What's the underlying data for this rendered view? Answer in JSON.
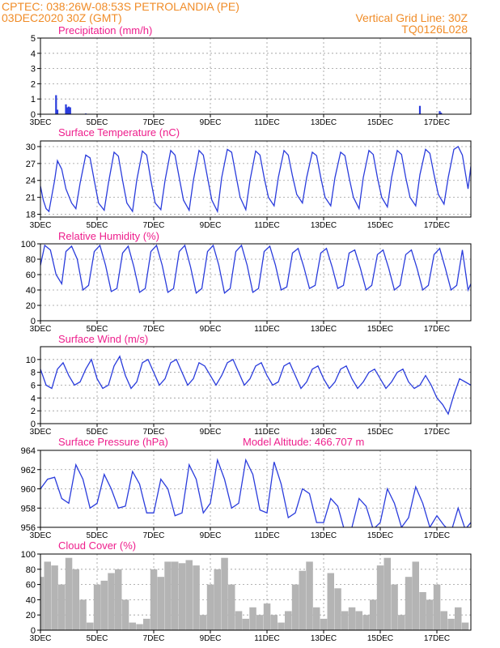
{
  "header": {
    "line1": "CPTEC:    038:26W-08:53S   PETROLANDIA (PE)",
    "line2": "03DEC2020 30Z (GMT)",
    "grid_note": "Vertical Grid Line: 30Z",
    "model_id": "TQ0126L028"
  },
  "colors": {
    "header": "#f08c28",
    "title": "#ee1e8c",
    "line": "#2a3cdc",
    "cloud": "#b4b4b4"
  },
  "x_axis": {
    "start_day": 3,
    "end_day": 18.2,
    "ticks": [
      {
        "day": 3,
        "label": "3DEC"
      },
      {
        "day": 5,
        "label": "5DEC"
      },
      {
        "day": 7,
        "label": "7DEC"
      },
      {
        "day": 9,
        "label": "9DEC"
      },
      {
        "day": 11,
        "label": "11DEC"
      },
      {
        "day": 13,
        "label": "13DEC"
      },
      {
        "day": 15,
        "label": "15DEC"
      },
      {
        "day": 17,
        "label": "17DEC"
      }
    ]
  },
  "chart_data": [
    {
      "id": "precip",
      "type": "bar",
      "title": "Precipitation  (mm/h)",
      "ylim": [
        0,
        5
      ],
      "yticks": [
        0,
        1,
        2,
        3,
        4,
        5
      ],
      "grid": true,
      "x": [
        3.55,
        3.6,
        3.9,
        3.95,
        4.0,
        4.05,
        4.6,
        16.4,
        17.1,
        17.15
      ],
      "values": [
        1.25,
        0.3,
        0.65,
        0.45,
        0.5,
        0.45,
        0.05,
        0.55,
        0.2,
        0.1
      ]
    },
    {
      "id": "temp",
      "type": "line",
      "title": "Surface Temperature  (nC)",
      "ylim": [
        17.5,
        31
      ],
      "yticks": [
        18,
        21,
        24,
        27,
        30
      ],
      "grid": true,
      "x": [
        3.0,
        3.1,
        3.2,
        3.3,
        3.5,
        3.6,
        3.75,
        3.9,
        4.1,
        4.25,
        4.4,
        4.6,
        4.75,
        4.9,
        5.05,
        5.25,
        5.4,
        5.6,
        5.75,
        5.9,
        6.05,
        6.25,
        6.4,
        6.6,
        6.75,
        6.9,
        7.05,
        7.25,
        7.4,
        7.6,
        7.75,
        7.9,
        8.05,
        8.25,
        8.4,
        8.6,
        8.75,
        8.9,
        9.05,
        9.25,
        9.4,
        9.6,
        9.75,
        9.9,
        10.05,
        10.25,
        10.4,
        10.6,
        10.75,
        10.9,
        11.05,
        11.25,
        11.4,
        11.6,
        11.75,
        11.9,
        12.05,
        12.25,
        12.4,
        12.6,
        12.75,
        12.9,
        13.05,
        13.25,
        13.4,
        13.6,
        13.75,
        13.9,
        14.05,
        14.25,
        14.4,
        14.6,
        14.75,
        14.9,
        15.05,
        15.25,
        15.4,
        15.6,
        15.75,
        15.9,
        16.05,
        16.25,
        16.4,
        16.6,
        16.75,
        16.9,
        17.05,
        17.25,
        17.4,
        17.6,
        17.75,
        17.9,
        18.1,
        18.2
      ],
      "values": [
        23.0,
        20.5,
        19.0,
        18.5,
        24.0,
        27.5,
        26.0,
        22.5,
        20.0,
        19.0,
        23.5,
        28.5,
        28.0,
        24.0,
        20.0,
        18.7,
        23.5,
        29.0,
        28.3,
        24.0,
        20.0,
        18.5,
        24.0,
        29.2,
        28.5,
        24.0,
        20.0,
        18.8,
        24.0,
        29.3,
        28.5,
        24.5,
        20.5,
        18.7,
        24.0,
        29.3,
        28.5,
        24.5,
        20.5,
        18.5,
        24.5,
        29.5,
        29.0,
        25.0,
        21.0,
        18.8,
        24.0,
        29.2,
        28.5,
        24.5,
        21.0,
        19.5,
        24.5,
        29.3,
        28.5,
        24.8,
        21.5,
        20.0,
        24.5,
        29.0,
        28.4,
        24.5,
        21.0,
        19.5,
        24.5,
        29.0,
        28.4,
        24.5,
        21.0,
        19.0,
        24.5,
        29.3,
        28.6,
        24.5,
        21.0,
        19.3,
        24.5,
        29.3,
        28.6,
        24.5,
        21.0,
        19.5,
        25.0,
        29.5,
        28.8,
        25.0,
        21.5,
        19.8,
        24.5,
        29.5,
        30.0,
        28.5,
        22.5,
        26.5
      ]
    },
    {
      "id": "rh",
      "type": "line",
      "title": "Relative Humidity  (%)",
      "ylim": [
        0,
        100
      ],
      "yticks": [
        0,
        20,
        40,
        60,
        80,
        100
      ],
      "grid": true,
      "x": [
        3.0,
        3.15,
        3.35,
        3.55,
        3.75,
        3.9,
        4.1,
        4.3,
        4.5,
        4.7,
        4.9,
        5.1,
        5.3,
        5.5,
        5.7,
        5.9,
        6.1,
        6.3,
        6.5,
        6.7,
        6.9,
        7.1,
        7.3,
        7.5,
        7.7,
        7.9,
        8.1,
        8.3,
        8.5,
        8.7,
        8.9,
        9.1,
        9.3,
        9.5,
        9.7,
        9.9,
        10.1,
        10.3,
        10.5,
        10.7,
        10.9,
        11.1,
        11.3,
        11.5,
        11.7,
        11.9,
        12.1,
        12.3,
        12.5,
        12.7,
        12.9,
        13.1,
        13.3,
        13.5,
        13.7,
        13.9,
        14.1,
        14.3,
        14.5,
        14.7,
        14.9,
        15.1,
        15.3,
        15.5,
        15.7,
        15.9,
        16.1,
        16.3,
        16.5,
        16.7,
        16.9,
        17.1,
        17.3,
        17.5,
        17.7,
        17.9,
        18.1,
        18.2
      ],
      "values": [
        72.0,
        98.0,
        92.0,
        60.0,
        48.0,
        90.0,
        97.0,
        80.0,
        40.0,
        46.0,
        90.0,
        98.0,
        72.0,
        38.0,
        42.0,
        88.0,
        97.0,
        70.0,
        37.0,
        42.0,
        90.0,
        98.0,
        72.0,
        37.0,
        42.0,
        90.0,
        98.0,
        70.0,
        36.0,
        42.0,
        90.0,
        98.0,
        72.0,
        36.0,
        42.0,
        90.0,
        98.0,
        72.0,
        37.0,
        42.0,
        90.0,
        97.0,
        72.0,
        40.0,
        44.0,
        88.0,
        94.0,
        70.0,
        42.0,
        46.0,
        88.0,
        94.0,
        70.0,
        42.0,
        46.0,
        88.0,
        92.0,
        68.0,
        40.0,
        46.0,
        86.0,
        92.0,
        68.0,
        40.0,
        46.0,
        86.0,
        92.0,
        68.0,
        40.0,
        46.0,
        86.0,
        94.0,
        68.0,
        40.0,
        46.0,
        92.0,
        40.0,
        48.0
      ]
    },
    {
      "id": "wind",
      "type": "line",
      "title": "Surface Wind  (m/s)",
      "ylim": [
        0,
        12
      ],
      "yticks": [
        0,
        2,
        4,
        6,
        8,
        10
      ],
      "grid": true,
      "x": [
        3.0,
        3.2,
        3.4,
        3.6,
        3.8,
        4.0,
        4.2,
        4.4,
        4.6,
        4.8,
        5.0,
        5.2,
        5.4,
        5.6,
        5.8,
        6.0,
        6.2,
        6.4,
        6.6,
        6.8,
        7.0,
        7.2,
        7.4,
        7.6,
        7.8,
        8.0,
        8.2,
        8.4,
        8.6,
        8.8,
        9.0,
        9.2,
        9.4,
        9.6,
        9.8,
        10.0,
        10.2,
        10.4,
        10.6,
        10.8,
        11.0,
        11.2,
        11.4,
        11.6,
        11.8,
        12.0,
        12.2,
        12.4,
        12.6,
        12.8,
        13.0,
        13.2,
        13.4,
        13.6,
        13.8,
        14.0,
        14.2,
        14.4,
        14.6,
        14.8,
        15.0,
        15.2,
        15.4,
        15.6,
        15.8,
        16.0,
        16.2,
        16.4,
        16.6,
        16.8,
        17.0,
        17.2,
        17.4,
        17.6,
        17.8,
        18.0,
        18.2
      ],
      "values": [
        8.5,
        6.0,
        5.5,
        8.5,
        9.5,
        7.5,
        6.0,
        6.5,
        8.5,
        10.0,
        7.0,
        5.5,
        6.0,
        9.0,
        10.5,
        7.5,
        5.5,
        6.5,
        9.5,
        10.0,
        8.0,
        6.0,
        7.0,
        9.5,
        10.0,
        8.0,
        6.0,
        7.0,
        9.5,
        9.0,
        7.5,
        6.0,
        7.5,
        9.5,
        10.0,
        8.0,
        6.0,
        7.0,
        9.0,
        9.5,
        7.5,
        6.0,
        6.5,
        9.0,
        9.5,
        7.5,
        5.5,
        6.5,
        8.5,
        9.0,
        7.0,
        5.5,
        6.5,
        8.5,
        9.0,
        7.0,
        5.5,
        6.5,
        8.0,
        8.5,
        7.0,
        5.5,
        6.5,
        8.0,
        8.5,
        6.5,
        5.5,
        6.0,
        7.5,
        6.0,
        4.0,
        3.0,
        1.5,
        4.5,
        7.0,
        6.5,
        6.0
      ]
    },
    {
      "id": "pressure",
      "type": "line",
      "title": "Surface Pressure  (hPa)",
      "annotation": "Model Altitude: 466.707  m",
      "ylim": [
        956,
        964
      ],
      "yticks": [
        956,
        958,
        960,
        962,
        964
      ],
      "grid": true,
      "x": [
        3.0,
        3.25,
        3.5,
        3.75,
        4.0,
        4.25,
        4.5,
        4.75,
        5.0,
        5.25,
        5.5,
        5.75,
        6.0,
        6.25,
        6.5,
        6.75,
        7.0,
        7.25,
        7.5,
        7.75,
        8.0,
        8.25,
        8.5,
        8.75,
        9.0,
        9.25,
        9.5,
        9.75,
        10.0,
        10.25,
        10.5,
        10.75,
        11.0,
        11.25,
        11.5,
        11.75,
        12.0,
        12.25,
        12.5,
        12.75,
        13.0,
        13.25,
        13.5,
        13.75,
        14.0,
        14.25,
        14.5,
        14.75,
        15.0,
        15.25,
        15.5,
        15.75,
        16.0,
        16.25,
        16.5,
        16.75,
        17.0,
        17.25,
        17.5,
        17.75,
        18.0,
        18.2
      ],
      "values": [
        960.0,
        961.0,
        961.2,
        959.0,
        958.5,
        962.5,
        961.0,
        958.0,
        958.5,
        961.5,
        960.0,
        958.0,
        958.2,
        961.8,
        960.5,
        957.5,
        957.5,
        961.0,
        960.0,
        957.2,
        957.5,
        962.5,
        961.0,
        957.5,
        958.5,
        963.0,
        961.0,
        958.0,
        958.5,
        963.0,
        961.5,
        957.8,
        957.5,
        962.8,
        960.5,
        957.0,
        957.5,
        960.0,
        959.5,
        956.5,
        956.5,
        959.0,
        958.2,
        955.5,
        956.0,
        959.0,
        958.2,
        955.8,
        956.5,
        960.0,
        958.5,
        956.0,
        957.0,
        960.2,
        958.5,
        956.0,
        957.2,
        956.2,
        955.5,
        958.0,
        955.8,
        956.5
      ]
    },
    {
      "id": "cloud",
      "type": "bar",
      "title": "Cloud Cover  (%)",
      "ylim": [
        0,
        100
      ],
      "yticks": [
        0,
        20,
        40,
        60,
        80,
        100
      ],
      "grid": true,
      "x": [
        3.0,
        3.25,
        3.5,
        3.75,
        4.0,
        4.25,
        4.5,
        4.75,
        5.0,
        5.25,
        5.5,
        5.75,
        6.0,
        6.25,
        6.5,
        6.75,
        7.0,
        7.25,
        7.5,
        7.75,
        8.0,
        8.25,
        8.5,
        8.75,
        9.0,
        9.25,
        9.5,
        9.75,
        10.0,
        10.25,
        10.5,
        10.75,
        11.0,
        11.25,
        11.5,
        11.75,
        12.0,
        12.25,
        12.5,
        12.75,
        13.0,
        13.25,
        13.5,
        13.75,
        14.0,
        14.25,
        14.5,
        14.75,
        15.0,
        15.25,
        15.5,
        15.75,
        16.0,
        16.25,
        16.5,
        16.75,
        17.0,
        17.25,
        17.5,
        17.75,
        18.0
      ],
      "values": [
        70.0,
        90.0,
        85.0,
        60.0,
        95.0,
        80.0,
        40.0,
        10.0,
        60.0,
        65.0,
        75.0,
        80.0,
        40.0,
        10.0,
        8.0,
        15.0,
        80.0,
        70.0,
        90.0,
        90.0,
        88.0,
        92.0,
        85.0,
        20.0,
        60.0,
        80.0,
        95.0,
        60.0,
        25.0,
        15.0,
        30.0,
        20.0,
        35.0,
        20.0,
        10.0,
        25.0,
        60.0,
        78.0,
        90.0,
        30.0,
        15.0,
        75.0,
        55.0,
        25.0,
        30.0,
        25.0,
        20.0,
        40.0,
        85.0,
        95.0,
        60.0,
        20.0,
        70.0,
        90.0,
        50.0,
        40.0,
        60.0,
        25.0,
        15.0,
        30.0,
        10.0
      ]
    }
  ]
}
